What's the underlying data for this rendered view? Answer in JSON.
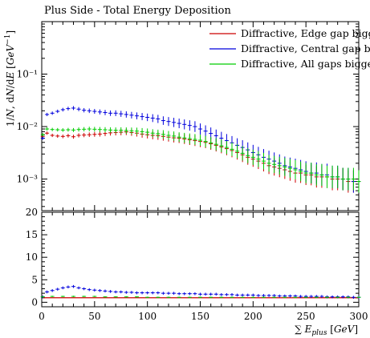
{
  "title": "Plus Side - Total Energy Deposition",
  "chart_data": [
    {
      "type": "scatter",
      "title": "Plus Side - Total Energy Deposition",
      "ylabel": "1/N, dN/dE [GeV^-1]",
      "yscale": "log",
      "ylim": [
        0.00025,
        1.0
      ],
      "xlim": [
        0,
        300
      ],
      "grid": false,
      "legend_position": "top-right",
      "y_ticks": [
        "10⁻¹",
        "10⁻²",
        "10⁻³"
      ],
      "series": [
        {
          "name": "Diffractive, Edge gap bigg",
          "color": "#cc0000",
          "x": [
            1,
            5,
            10,
            15,
            20,
            25,
            30,
            35,
            40,
            45,
            50,
            55,
            60,
            65,
            70,
            75,
            80,
            85,
            90,
            95,
            100,
            105,
            110,
            115,
            120,
            125,
            130,
            135,
            140,
            145,
            150,
            155,
            160,
            165,
            170,
            175,
            180,
            185,
            190,
            195,
            200,
            205,
            210,
            215,
            220,
            225,
            230,
            235,
            240,
            245,
            250,
            255,
            260,
            265,
            270,
            275,
            280,
            285,
            290,
            295,
            300
          ],
          "y": [
            0.0065,
            0.0075,
            0.0068,
            0.0066,
            0.0065,
            0.0067,
            0.0064,
            0.0068,
            0.0069,
            0.007,
            0.0071,
            0.0072,
            0.0074,
            0.0076,
            0.0077,
            0.0078,
            0.0079,
            0.0077,
            0.0075,
            0.0072,
            0.007,
            0.0068,
            0.0067,
            0.0065,
            0.0063,
            0.0061,
            0.006,
            0.0058,
            0.0056,
            0.0054,
            0.0052,
            0.005,
            0.0047,
            0.0044,
            0.0041,
            0.0038,
            0.0035,
            0.0032,
            0.0029,
            0.0026,
            0.0024,
            0.0022,
            0.002,
            0.0018,
            0.0017,
            0.0016,
            0.0015,
            0.0014,
            0.0013,
            0.0013,
            0.0012,
            0.0012,
            0.0011,
            0.0011,
            0.0011,
            0.001,
            0.001,
            0.001,
            0.0009,
            0.0009,
            0.0009
          ]
        },
        {
          "name": "Diffractive, Central gap bi",
          "color": "#0000dd",
          "x": [
            1,
            5,
            10,
            15,
            20,
            25,
            30,
            35,
            40,
            45,
            50,
            55,
            60,
            65,
            70,
            75,
            80,
            85,
            90,
            95,
            100,
            105,
            110,
            115,
            120,
            125,
            130,
            135,
            140,
            145,
            150,
            155,
            160,
            165,
            170,
            175,
            180,
            185,
            190,
            195,
            200,
            205,
            210,
            215,
            220,
            225,
            230,
            235,
            240,
            245,
            250,
            255,
            260,
            265,
            270,
            275,
            280,
            285,
            290,
            295,
            300
          ],
          "y": [
            0.006,
            0.017,
            0.018,
            0.0195,
            0.021,
            0.022,
            0.0225,
            0.0215,
            0.0205,
            0.02,
            0.0195,
            0.019,
            0.0185,
            0.018,
            0.018,
            0.0175,
            0.017,
            0.0165,
            0.016,
            0.0155,
            0.015,
            0.0145,
            0.014,
            0.013,
            0.0125,
            0.012,
            0.0115,
            0.011,
            0.0105,
            0.01,
            0.009,
            0.0082,
            0.0074,
            0.0067,
            0.006,
            0.0054,
            0.0049,
            0.0044,
            0.004,
            0.0036,
            0.0032,
            0.0029,
            0.0026,
            0.0024,
            0.0022,
            0.002,
            0.0018,
            0.0017,
            0.0016,
            0.0015,
            0.0014,
            0.0013,
            0.0013,
            0.0012,
            0.0012,
            0.0011,
            0.0011,
            0.001,
            0.001,
            0.0009,
            0.0009
          ]
        },
        {
          "name": "Diffractive, All gaps bigge",
          "color": "#00cc00",
          "x": [
            1,
            5,
            10,
            15,
            20,
            25,
            30,
            35,
            40,
            45,
            50,
            55,
            60,
            65,
            70,
            75,
            80,
            85,
            90,
            95,
            100,
            105,
            110,
            115,
            120,
            125,
            130,
            135,
            140,
            145,
            150,
            155,
            160,
            165,
            170,
            175,
            180,
            185,
            190,
            195,
            200,
            205,
            210,
            215,
            220,
            225,
            230,
            235,
            240,
            245,
            250,
            255,
            260,
            265,
            270,
            275,
            280,
            285,
            290,
            295,
            300
          ],
          "y": [
            0.007,
            0.009,
            0.0088,
            0.0087,
            0.0086,
            0.0087,
            0.0086,
            0.0088,
            0.0089,
            0.009,
            0.0089,
            0.0088,
            0.0087,
            0.0086,
            0.0085,
            0.0085,
            0.0084,
            0.0083,
            0.0082,
            0.008,
            0.0078,
            0.0075,
            0.0073,
            0.0071,
            0.0068,
            0.0066,
            0.0063,
            0.0061,
            0.0059,
            0.0057,
            0.0055,
            0.0052,
            0.0049,
            0.0046,
            0.0043,
            0.004,
            0.0037,
            0.0034,
            0.0031,
            0.0028,
            0.0026,
            0.0024,
            0.0022,
            0.002,
            0.0019,
            0.0018,
            0.0017,
            0.0016,
            0.0015,
            0.0014,
            0.0013,
            0.0013,
            0.0012,
            0.0012,
            0.0011,
            0.0011,
            0.0011,
            0.001,
            0.001,
            0.001,
            0.0009
          ]
        }
      ]
    },
    {
      "type": "scatter",
      "xlabel": "∑ E_plus [GeV]",
      "xlim": [
        0,
        300
      ],
      "ylim": [
        -1,
        20
      ],
      "grid": false,
      "x_ticks": [
        0,
        50,
        100,
        150,
        200,
        250,
        300
      ],
      "y_ticks": [
        0,
        5,
        10,
        15,
        20
      ],
      "series": [
        {
          "color": "#cc0000",
          "x": [
            1,
            10,
            20,
            30,
            40,
            50,
            60,
            70,
            80,
            90,
            100,
            110,
            120,
            130,
            140,
            150,
            160,
            170,
            180,
            190,
            200,
            210,
            220,
            230,
            240,
            250,
            260,
            270,
            280,
            290,
            300
          ],
          "y": [
            1,
            1,
            1,
            1,
            1,
            1,
            1,
            1,
            1,
            1,
            1,
            1,
            1,
            1,
            1,
            1,
            1,
            1,
            1,
            1,
            1,
            1,
            1,
            1,
            1,
            1,
            1,
            1,
            1,
            1,
            1
          ]
        },
        {
          "color": "#0000dd",
          "x": [
            1,
            5,
            10,
            15,
            20,
            25,
            30,
            35,
            40,
            45,
            50,
            55,
            60,
            65,
            70,
            75,
            80,
            85,
            90,
            95,
            100,
            105,
            110,
            115,
            120,
            125,
            130,
            135,
            140,
            145,
            150,
            155,
            160,
            165,
            170,
            175,
            180,
            185,
            190,
            195,
            200,
            205,
            210,
            215,
            220,
            225,
            230,
            235,
            240,
            245,
            250,
            255,
            260,
            265,
            270,
            275,
            280,
            285,
            290,
            295,
            300
          ],
          "y": [
            1.2,
            2.3,
            2.6,
            2.9,
            3.2,
            3.4,
            3.5,
            3.2,
            3.0,
            2.8,
            2.7,
            2.6,
            2.5,
            2.4,
            2.3,
            2.3,
            2.2,
            2.2,
            2.1,
            2.1,
            2.1,
            2.1,
            2.1,
            2.0,
            2.0,
            2.0,
            1.9,
            1.9,
            1.9,
            1.9,
            1.8,
            1.8,
            1.8,
            1.8,
            1.7,
            1.7,
            1.7,
            1.6,
            1.6,
            1.6,
            1.6,
            1.5,
            1.5,
            1.5,
            1.5,
            1.4,
            1.4,
            1.4,
            1.4,
            1.3,
            1.3,
            1.3,
            1.3,
            1.3,
            1.2,
            1.2,
            1.2,
            1.2,
            1.2,
            1.1,
            1.1
          ]
        },
        {
          "color": "#00cc00",
          "x": [
            1,
            10,
            20,
            30,
            40,
            50,
            60,
            70,
            80,
            90,
            100,
            110,
            120,
            130,
            140,
            150,
            160,
            170,
            180,
            190,
            200,
            210,
            220,
            230,
            240,
            250,
            260,
            270,
            280,
            290,
            300
          ],
          "y": [
            1.2,
            1.3,
            1.3,
            1.3,
            1.3,
            1.3,
            1.2,
            1.2,
            1.2,
            1.2,
            1.1,
            1.1,
            1.1,
            1.1,
            1.1,
            1.1,
            1.1,
            1.1,
            1.1,
            1.1,
            1.1,
            1.1,
            1.1,
            1.1,
            1.1,
            1.1,
            1.1,
            1.1,
            1.1,
            1.1,
            1.1
          ]
        }
      ]
    }
  ]
}
